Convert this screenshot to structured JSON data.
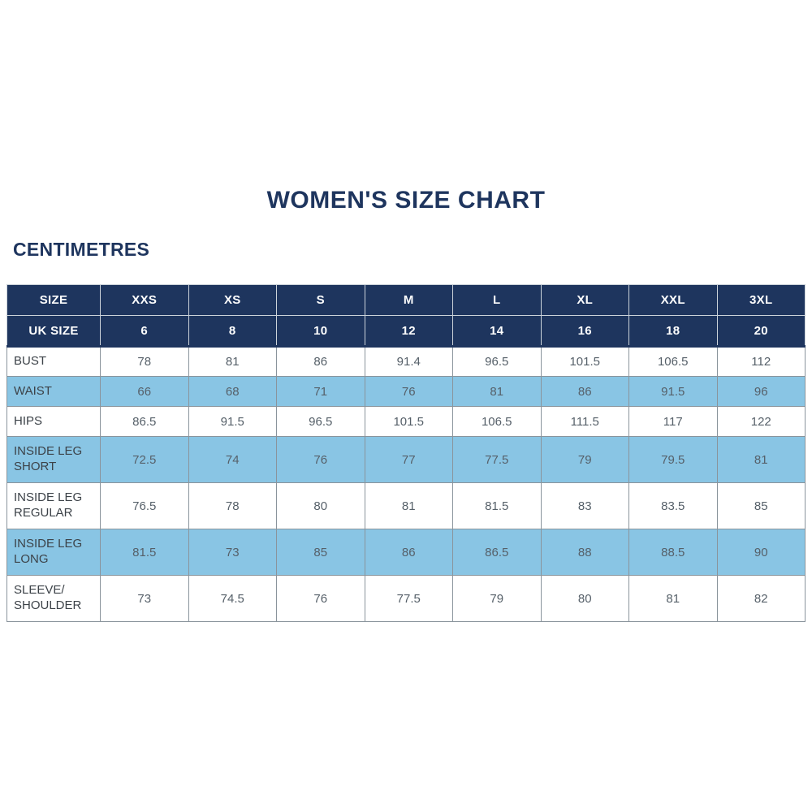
{
  "page": {
    "title": "WOMEN'S SIZE CHART",
    "units_label": "CENTIMETRES"
  },
  "colors": {
    "navy": "#1e355e",
    "light_blue": "#89c5e4",
    "body_border": "#8a949c",
    "header_border": "#ccd3da",
    "label_text": "#3c4248",
    "value_text": "#566069",
    "white": "#ffffff"
  },
  "chart_data": {
    "type": "table",
    "title": "WOMEN'S SIZE CHART",
    "units": "CENTIMETRES",
    "header_rows": [
      {
        "label": "SIZE",
        "values": [
          "XXS",
          "XS",
          "S",
          "M",
          "L",
          "XL",
          "XXL",
          "3XL"
        ]
      },
      {
        "label": "UK SIZE",
        "values": [
          "6",
          "8",
          "10",
          "12",
          "14",
          "16",
          "18",
          "20"
        ]
      }
    ],
    "rows": [
      {
        "label": "BUST",
        "values": [
          "78",
          "81",
          "86",
          "91.4",
          "96.5",
          "101.5",
          "106.5",
          "112"
        ]
      },
      {
        "label": "WAIST",
        "values": [
          "66",
          "68",
          "71",
          "76",
          "81",
          "86",
          "91.5",
          "96"
        ]
      },
      {
        "label": "HIPS",
        "values": [
          "86.5",
          "91.5",
          "96.5",
          "101.5",
          "106.5",
          "111.5",
          "117",
          "122"
        ]
      },
      {
        "label": "INSIDE LEG SHORT",
        "values": [
          "72.5",
          "74",
          "76",
          "77",
          "77.5",
          "79",
          "79.5",
          "81"
        ]
      },
      {
        "label": "INSIDE LEG REGULAR",
        "values": [
          "76.5",
          "78",
          "80",
          "81",
          "81.5",
          "83",
          "83.5",
          "85"
        ]
      },
      {
        "label": "INSIDE LEG LONG",
        "values": [
          "81.5",
          "73",
          "85",
          "86",
          "86.5",
          "88",
          "88.5",
          "90"
        ]
      },
      {
        "label": "SLEEVE/ SHOULDER",
        "values": [
          "73",
          "74.5",
          "76",
          "77.5",
          "79",
          "80",
          "81",
          "82"
        ]
      }
    ]
  }
}
